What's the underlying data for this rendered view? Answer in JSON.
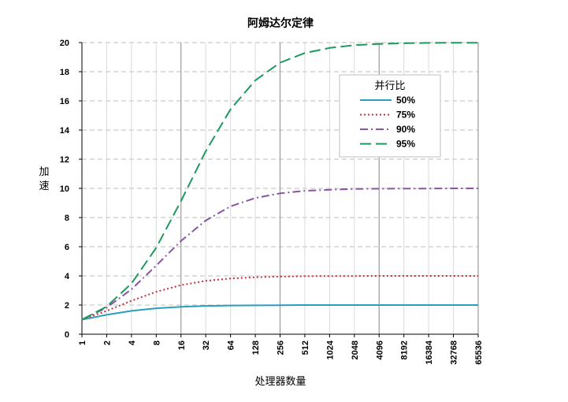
{
  "chart_data": {
    "type": "line",
    "title": "阿姆达尔定律",
    "xlabel": "处理器数量",
    "ylabel": "加速",
    "x_scale": "log2",
    "x": [
      1,
      2,
      4,
      8,
      16,
      32,
      64,
      128,
      256,
      512,
      1024,
      2048,
      4096,
      8192,
      16384,
      32768,
      65536
    ],
    "x_tick_labels": [
      "1",
      "2",
      "4",
      "8",
      "16",
      "32",
      "64",
      "128",
      "256",
      "512",
      "1024",
      "2048",
      "4096",
      "8192",
      "16384",
      "32768",
      "65536"
    ],
    "ylim": [
      0,
      20
    ],
    "y_ticks": [
      0,
      2,
      4,
      6,
      8,
      10,
      12,
      14,
      16,
      18,
      20
    ],
    "grid": true,
    "legend": {
      "title": "并行比",
      "position": "top-right"
    },
    "series": [
      {
        "name": "50%",
        "color": "#2a9fbc",
        "dash": "solid",
        "values": [
          1.0,
          1.33,
          1.6,
          1.78,
          1.88,
          1.94,
          1.97,
          1.98,
          1.99,
          2.0,
          2.0,
          2.0,
          2.0,
          2.0,
          2.0,
          2.0,
          2.0
        ]
      },
      {
        "name": "75%",
        "color": "#c0303a",
        "dash": "dotted",
        "values": [
          1.0,
          1.6,
          2.29,
          2.91,
          3.37,
          3.66,
          3.82,
          3.91,
          3.95,
          3.98,
          3.99,
          3.99,
          4.0,
          4.0,
          4.0,
          4.0,
          4.0
        ]
      },
      {
        "name": "90%",
        "color": "#8854a3",
        "dash": "dashdot",
        "values": [
          1.0,
          1.82,
          3.08,
          4.71,
          6.4,
          7.8,
          8.77,
          9.34,
          9.66,
          9.83,
          9.91,
          9.96,
          9.98,
          9.99,
          9.99,
          10.0,
          10.0
        ]
      },
      {
        "name": "95%",
        "color": "#1a9a5c",
        "dash": "dashed",
        "values": [
          1.0,
          1.9,
          3.48,
          5.93,
          9.14,
          12.55,
          15.42,
          17.41,
          18.62,
          19.28,
          19.63,
          19.82,
          19.91,
          19.95,
          19.98,
          19.99,
          19.99
        ]
      }
    ]
  }
}
